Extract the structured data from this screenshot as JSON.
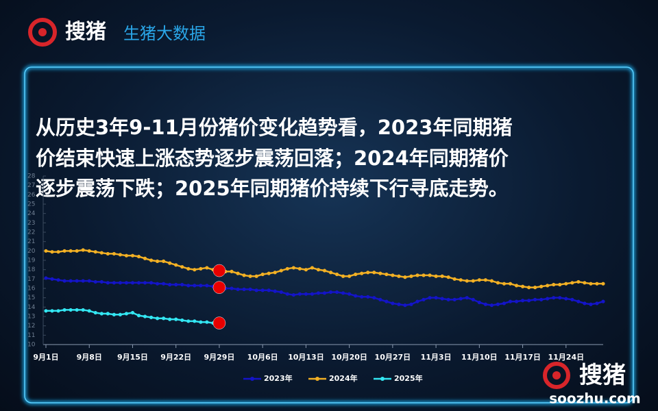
{
  "header": {
    "brand": "搜猪",
    "title": "生猪大数据"
  },
  "headline": [
    "从历史3年9-11月份猪价变化趋势看，2023年同期猪",
    "价结束快速上涨态势逐步震荡回落；2024年同期猪价",
    "逐步震荡下跌；2025年同期猪价持续下行寻底走势。"
  ],
  "watermark": {
    "brand": "搜猪",
    "site": "soozhu.com"
  },
  "chart_data": {
    "type": "line",
    "categories": [
      "9月1日",
      null,
      null,
      null,
      null,
      null,
      null,
      "9月8日",
      null,
      null,
      null,
      null,
      null,
      null,
      "9月15日",
      null,
      null,
      null,
      null,
      null,
      null,
      "9月22日",
      null,
      null,
      null,
      null,
      null,
      null,
      "9月29日",
      null,
      null,
      null,
      null,
      null,
      null,
      "10月6日",
      null,
      null,
      null,
      null,
      null,
      null,
      "10月13日",
      null,
      null,
      null,
      null,
      null,
      null,
      "10月20日",
      null,
      null,
      null,
      null,
      null,
      null,
      "10月27日",
      null,
      null,
      null,
      null,
      null,
      null,
      "11月3日",
      null,
      null,
      null,
      null,
      null,
      null,
      "11月10日",
      null,
      null,
      null,
      null,
      null,
      null,
      "11月17日",
      null,
      null,
      null,
      null,
      null,
      null,
      "11月24日",
      null,
      null,
      null,
      null,
      null,
      null
    ],
    "series": [
      {
        "name": "2023年",
        "color": "#1414c8",
        "values": [
          17.1,
          17.0,
          16.9,
          16.8,
          16.8,
          16.8,
          16.8,
          16.8,
          16.7,
          16.7,
          16.6,
          16.6,
          16.6,
          16.6,
          16.6,
          16.6,
          16.6,
          16.6,
          16.5,
          16.5,
          16.4,
          16.4,
          16.4,
          16.3,
          16.3,
          16.3,
          16.3,
          16.2,
          16.1,
          16.0,
          16.0,
          15.9,
          15.9,
          15.9,
          15.8,
          15.8,
          15.8,
          15.7,
          15.6,
          15.4,
          15.3,
          15.4,
          15.4,
          15.4,
          15.5,
          15.5,
          15.6,
          15.6,
          15.5,
          15.4,
          15.2,
          15.1,
          15.1,
          15.0,
          14.8,
          14.6,
          14.4,
          14.3,
          14.2,
          14.3,
          14.6,
          14.8,
          15.0,
          15.0,
          14.9,
          14.8,
          14.8,
          14.9,
          15.0,
          14.8,
          14.5,
          14.3,
          14.2,
          14.3,
          14.4,
          14.6,
          14.6,
          14.7,
          14.7,
          14.8,
          14.8,
          14.9,
          15.0,
          15.0,
          14.9,
          14.8,
          14.6,
          14.4,
          14.3,
          14.4,
          14.6
        ]
      },
      {
        "name": "2024年",
        "color": "#f2b024",
        "values": [
          20.0,
          19.9,
          19.9,
          20.0,
          20.0,
          20.0,
          20.1,
          20.0,
          19.9,
          19.8,
          19.7,
          19.7,
          19.6,
          19.5,
          19.5,
          19.4,
          19.2,
          19.0,
          18.9,
          18.9,
          18.7,
          18.5,
          18.3,
          18.1,
          18.0,
          18.1,
          18.2,
          18.0,
          17.9,
          17.8,
          17.8,
          17.6,
          17.4,
          17.3,
          17.3,
          17.5,
          17.6,
          17.7,
          17.9,
          18.1,
          18.2,
          18.1,
          18.0,
          18.2,
          18.0,
          17.9,
          17.7,
          17.5,
          17.3,
          17.3,
          17.5,
          17.6,
          17.7,
          17.7,
          17.6,
          17.5,
          17.4,
          17.3,
          17.2,
          17.3,
          17.4,
          17.4,
          17.4,
          17.3,
          17.3,
          17.2,
          17.0,
          16.9,
          16.8,
          16.8,
          16.9,
          16.9,
          16.8,
          16.6,
          16.5,
          16.5,
          16.3,
          16.2,
          16.1,
          16.1,
          16.2,
          16.3,
          16.4,
          16.4,
          16.5,
          16.6,
          16.7,
          16.6,
          16.5,
          16.5,
          16.5
        ]
      },
      {
        "name": "2025年",
        "color": "#33e6f2",
        "values": [
          13.6,
          13.6,
          13.6,
          13.7,
          13.7,
          13.7,
          13.7,
          13.6,
          13.4,
          13.3,
          13.3,
          13.2,
          13.2,
          13.3,
          13.4,
          13.1,
          13.0,
          12.9,
          12.8,
          12.8,
          12.7,
          12.7,
          12.6,
          12.5,
          12.5,
          12.4,
          12.4,
          12.3,
          12.3,
          null,
          null,
          null,
          null,
          null,
          null,
          null,
          null,
          null,
          null,
          null,
          null,
          null,
          null,
          null,
          null,
          null,
          null,
          null,
          null,
          null,
          null,
          null,
          null,
          null,
          null,
          null,
          null,
          null,
          null,
          null,
          null,
          null,
          null,
          null,
          null,
          null,
          null,
          null,
          null,
          null,
          null,
          null,
          null,
          null,
          null,
          null,
          null,
          null,
          null,
          null,
          null,
          null,
          null,
          null,
          null,
          null,
          null,
          null,
          null,
          null,
          null
        ]
      }
    ],
    "highlight": {
      "index": 28,
      "color": "#e80000"
    },
    "ylim": [
      10,
      28
    ],
    "yticks": [
      10,
      11,
      12,
      13,
      14,
      15,
      16,
      17,
      18,
      19,
      20,
      21,
      22,
      23,
      24,
      25,
      26,
      27,
      28
    ],
    "legend": "bottom"
  }
}
